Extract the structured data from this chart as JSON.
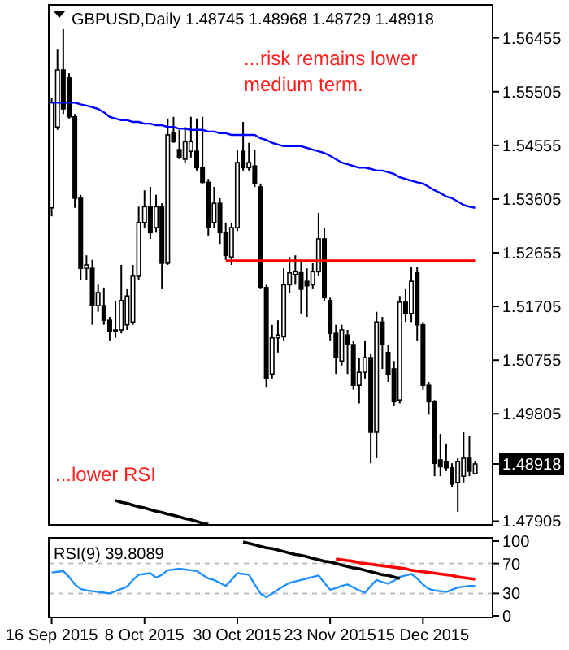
{
  "chart_data": [
    {
      "type": "candlestick",
      "title": "GBPUSD,Daily  1.48745 1.48968 1.48729 1.48918",
      "tick_labels": "y",
      "categories": [
        null,
        null,
        null,
        null,
        null,
        null,
        null,
        null,
        null,
        null,
        null,
        null,
        null,
        null,
        null,
        null,
        null,
        null,
        null,
        null,
        null,
        null,
        null,
        null,
        null,
        null,
        null,
        null,
        null,
        null,
        null,
        null,
        null,
        null,
        null,
        null,
        null,
        null,
        null,
        null,
        null,
        null,
        null,
        null,
        null,
        null,
        null,
        null,
        null,
        null,
        null,
        null,
        null,
        null,
        null,
        null,
        null,
        null,
        null,
        null,
        null,
        null,
        null,
        null,
        null,
        null,
        null,
        null,
        null,
        null,
        null,
        null,
        null,
        null
      ],
      "ohlc": [
        [
          1.5345,
          1.554,
          1.533,
          1.5531
        ],
        [
          1.5488,
          1.5626,
          1.5483,
          1.5589
        ],
        [
          1.5589,
          1.5661,
          1.5511,
          1.552
        ],
        [
          1.5575,
          1.5583,
          1.5503,
          1.5506
        ],
        [
          1.5506,
          1.5511,
          1.5345,
          1.5362
        ],
        [
          1.5362,
          1.5368,
          1.5218,
          1.5238
        ],
        [
          1.5238,
          1.5261,
          1.5218,
          1.5244
        ],
        [
          1.5238,
          1.5253,
          1.5138,
          1.5172
        ],
        [
          1.5172,
          1.5209,
          1.5161,
          1.5195
        ],
        [
          1.5172,
          1.5204,
          1.5138,
          1.5146
        ],
        [
          1.5146,
          1.5152,
          1.5109,
          1.5126
        ],
        [
          1.5129,
          1.5181,
          1.5115,
          1.5126
        ],
        [
          1.5129,
          1.5244,
          1.5123,
          1.5181
        ],
        [
          1.5138,
          1.5201,
          1.5129,
          1.5189
        ],
        [
          1.5143,
          1.5244,
          1.5138,
          1.5224
        ],
        [
          1.5224,
          1.5347,
          1.5218,
          1.5319
        ],
        [
          1.5319,
          1.5376,
          1.531,
          1.5347
        ],
        [
          1.5347,
          1.5382,
          1.529,
          1.5301
        ],
        [
          1.531,
          1.5368,
          1.5301,
          1.5347
        ],
        [
          1.5347,
          1.5353,
          1.5201,
          1.5247
        ],
        [
          1.5247,
          1.5503,
          1.5244,
          1.5474
        ],
        [
          1.5477,
          1.5506,
          1.546,
          1.5462
        ],
        [
          1.5448,
          1.5483,
          1.5431,
          1.5434
        ],
        [
          1.5431,
          1.5488,
          1.5425,
          1.5462
        ],
        [
          1.5445,
          1.5506,
          1.5434,
          1.5462
        ],
        [
          1.5445,
          1.5503,
          1.5411,
          1.5416
        ],
        [
          1.5416,
          1.5506,
          1.5388,
          1.539
        ],
        [
          1.539,
          1.5396,
          1.5296,
          1.531
        ],
        [
          1.5319,
          1.5382,
          1.531,
          1.5353
        ],
        [
          1.5353,
          1.5362,
          1.5281,
          1.5301
        ],
        [
          1.5301,
          1.5319,
          1.5253,
          1.5261
        ],
        [
          1.5258,
          1.5319,
          1.5244,
          1.531
        ],
        [
          1.531,
          1.5448,
          1.5304,
          1.5425
        ],
        [
          1.5445,
          1.5497,
          1.5411,
          1.5416
        ],
        [
          1.5416,
          1.546,
          1.5411,
          1.5425
        ],
        [
          1.5419,
          1.5448,
          1.5382,
          1.5388
        ],
        [
          1.5382,
          1.5388,
          1.5201,
          1.5204
        ],
        [
          1.5204,
          1.5209,
          1.5028,
          1.5043
        ],
        [
          1.5051,
          1.5138,
          1.5043,
          1.5115
        ],
        [
          1.5115,
          1.5146,
          1.5089,
          1.512
        ],
        [
          1.5117,
          1.5238,
          1.5109,
          1.5209
        ],
        [
          1.5209,
          1.5258,
          1.5195,
          1.523
        ],
        [
          1.5227,
          1.5261,
          1.5209,
          1.5232
        ],
        [
          1.523,
          1.5253,
          1.5158,
          1.5201
        ],
        [
          1.5215,
          1.5238,
          1.5152,
          1.5207
        ],
        [
          1.5209,
          1.5247,
          1.5201,
          1.5232
        ],
        [
          1.5232,
          1.5336,
          1.5224,
          1.529
        ],
        [
          1.529,
          1.531,
          1.5181,
          1.5186
        ],
        [
          1.5181,
          1.5186,
          1.5109,
          1.5123
        ],
        [
          1.5123,
          1.5138,
          1.5051,
          1.508
        ],
        [
          1.5074,
          1.5138,
          1.5066,
          1.5129
        ],
        [
          1.512,
          1.5129,
          1.5051,
          1.5103
        ],
        [
          1.5103,
          1.5109,
          1.5023,
          1.5031
        ],
        [
          1.5031,
          1.508,
          1.4999,
          1.5054
        ],
        [
          1.5054,
          1.5109,
          1.5043,
          1.508
        ],
        [
          1.508,
          1.5086,
          1.4893,
          1.4948
        ],
        [
          1.4948,
          1.5161,
          1.4902,
          1.5143
        ],
        [
          1.5143,
          1.5152,
          1.506,
          1.5103
        ],
        [
          1.5089,
          1.5103,
          1.5037,
          1.5051
        ],
        [
          1.506,
          1.5074,
          1.4994,
          1.5002
        ],
        [
          1.5005,
          1.5189,
          1.4999,
          1.5178
        ],
        [
          1.5178,
          1.5201,
          1.5143,
          1.5158
        ],
        [
          1.5158,
          1.5241,
          1.5143,
          1.5215
        ],
        [
          1.523,
          1.5241,
          1.5109,
          1.5138
        ],
        [
          1.5138,
          1.5143,
          1.5023,
          1.5031
        ],
        [
          1.5031,
          1.5037,
          1.4979,
          1.5002
        ],
        [
          1.5002,
          1.5005,
          1.487,
          1.4893
        ],
        [
          1.4899,
          1.4945,
          1.487,
          1.4887
        ],
        [
          1.4896,
          1.4928,
          1.4879,
          1.4885
        ],
        [
          1.4885,
          1.4893,
          1.485,
          1.4856
        ],
        [
          1.4859,
          1.4902,
          1.4807,
          1.4896
        ],
        [
          1.487,
          1.4948,
          1.4859,
          1.4902
        ],
        [
          1.4902,
          1.4942,
          1.487,
          1.4879
        ],
        [
          1.48745,
          1.48968,
          1.48729,
          1.48918
        ]
      ],
      "series": [
        {
          "type": "line",
          "color": "#0000ff",
          "values": [
            1.5531,
            1.5531,
            1.5531,
            1.5531,
            1.5531,
            1.5528,
            1.5526,
            1.5523,
            1.552,
            1.5514,
            1.5506,
            1.5503,
            1.55,
            1.55,
            1.5497,
            1.5497,
            1.5494,
            1.5494,
            1.5491,
            1.5491,
            1.5488,
            1.5488,
            1.5485,
            1.5485,
            1.5483,
            1.5483,
            1.5483,
            1.548,
            1.548,
            1.5477,
            1.5477,
            1.5474,
            1.5474,
            1.5474,
            1.5474,
            1.5474,
            1.5468,
            1.5465,
            1.546,
            1.5457,
            1.5454,
            1.5454,
            1.5454,
            1.5454,
            1.5451,
            1.5448,
            1.5445,
            1.5442,
            1.5437,
            1.5431,
            1.5425,
            1.5422,
            1.5419,
            1.5416,
            1.5416,
            1.5414,
            1.5411,
            1.5411,
            1.5408,
            1.5405,
            1.5399,
            1.5396,
            1.5393,
            1.539,
            1.5388,
            1.5382,
            1.5376,
            1.5371,
            1.5365,
            1.5362,
            1.5356,
            1.535,
            1.5347,
            1.5345
          ]
        },
        {
          "type": "line",
          "color": "#ff0000",
          "values": [
            null,
            null,
            null,
            null,
            null,
            null,
            null,
            null,
            null,
            null,
            null,
            null,
            null,
            null,
            null,
            null,
            null,
            null,
            null,
            null,
            null,
            null,
            null,
            null,
            null,
            null,
            null,
            null,
            null,
            null,
            1.5251,
            1.5251,
            1.5251,
            1.5251,
            1.5251,
            1.5251,
            1.5251,
            1.5251,
            1.5251,
            1.5251,
            1.5251,
            1.5251,
            1.5251,
            1.5251,
            1.5251,
            1.5251,
            1.5251,
            1.5251,
            1.5251,
            1.5251,
            1.5251,
            1.5251,
            1.5251,
            1.5251,
            1.5251,
            1.5251,
            1.5251,
            1.5251,
            1.5251,
            1.5251,
            1.5251,
            1.5251,
            1.5251,
            1.5251,
            1.5251,
            1.5251,
            1.5251,
            1.5251,
            1.5251,
            1.5251,
            1.5251,
            1.5251,
            1.5251,
            1.5251
          ]
        },
        {
          "type": "line",
          "color": "#000000",
          "values": [
            null,
            null,
            null,
            null,
            null,
            null,
            null,
            null,
            null,
            null,
            null,
            1.4827,
            1.4824,
            1.4822,
            1.4819,
            1.4816,
            1.4814,
            1.4811,
            1.4808,
            1.4806,
            1.4803,
            1.4801,
            1.4798,
            1.4795,
            1.4793,
            1.479,
            1.4787,
            1.4785,
            null,
            null,
            null,
            null,
            null,
            null,
            null,
            null,
            null,
            null,
            null,
            null,
            null,
            null,
            null,
            null,
            null,
            null,
            null,
            null,
            null,
            null,
            null,
            null,
            null,
            null,
            null,
            null,
            null,
            null,
            null,
            null,
            null,
            null,
            null,
            null,
            null,
            null,
            null,
            null,
            null,
            null,
            null,
            null,
            null,
            null
          ]
        }
      ],
      "ylim": [
        1.4784,
        1.5704
      ],
      "yticks": [
        1.56455,
        1.55505,
        1.54555,
        1.53605,
        1.52655,
        1.51705,
        1.50755,
        1.49805,
        1.48918,
        1.47905
      ],
      "annotations": [
        "...risk remains lower\nmedium term.",
        "...lower RSI"
      ]
    },
    {
      "type": "line",
      "title": "RSI(9) 39.8089",
      "categories": [
        "16 Sep 2015",
        null,
        null,
        null,
        null,
        null,
        null,
        null,
        null,
        null,
        null,
        null,
        null,
        null,
        null,
        null,
        "8 Oct 2015",
        null,
        null,
        null,
        null,
        null,
        null,
        null,
        null,
        null,
        null,
        null,
        null,
        null,
        null,
        null,
        "30 Oct 2015",
        null,
        null,
        null,
        null,
        null,
        null,
        null,
        null,
        null,
        null,
        null,
        null,
        null,
        null,
        null,
        "23 Nov 2015",
        null,
        null,
        null,
        null,
        null,
        null,
        null,
        null,
        null,
        null,
        null,
        null,
        null,
        null,
        null,
        "15 Dec 2015",
        null,
        null,
        null,
        null,
        null,
        null,
        null,
        null,
        null
      ],
      "series": [
        {
          "color": "#1e90ff",
          "values": [
            58,
            59,
            60,
            52,
            42,
            36,
            34,
            33,
            32,
            31,
            30,
            33,
            36,
            39,
            48,
            55,
            56,
            57,
            51,
            55,
            61,
            62,
            63,
            62,
            61,
            60,
            55,
            50,
            48,
            44,
            40,
            48,
            57,
            56,
            55,
            42,
            30,
            25,
            30,
            35,
            40,
            44,
            46,
            48,
            50,
            52,
            54,
            44,
            35,
            37,
            40,
            42,
            38,
            34,
            31,
            40,
            48,
            45,
            43,
            47,
            52,
            54,
            56,
            50,
            42,
            36,
            34,
            33,
            32,
            35,
            38,
            39,
            40,
            40
          ]
        },
        {
          "color": "#000000",
          "values": [
            null,
            null,
            null,
            null,
            null,
            null,
            null,
            null,
            null,
            null,
            null,
            null,
            null,
            null,
            null,
            null,
            null,
            null,
            null,
            null,
            null,
            null,
            null,
            null,
            null,
            null,
            null,
            null,
            null,
            null,
            null,
            null,
            null,
            99,
            97,
            95,
            93,
            91,
            90,
            88,
            86,
            84,
            82,
            81,
            79,
            77,
            75,
            73,
            72,
            70,
            68,
            66,
            64,
            63,
            61,
            59,
            57,
            55,
            54,
            52,
            50,
            null,
            null,
            null,
            null,
            null,
            null,
            null,
            null,
            null,
            null,
            null,
            null,
            null
          ]
        },
        {
          "color": "#ff0000",
          "values": [
            null,
            null,
            null,
            null,
            null,
            null,
            null,
            null,
            null,
            null,
            null,
            null,
            null,
            null,
            null,
            null,
            null,
            null,
            null,
            null,
            null,
            null,
            null,
            null,
            null,
            null,
            null,
            null,
            null,
            null,
            null,
            null,
            null,
            null,
            null,
            null,
            null,
            null,
            null,
            null,
            null,
            null,
            null,
            null,
            null,
            null,
            null,
            null,
            null,
            76,
            75,
            74,
            73,
            71,
            70,
            69,
            68,
            67,
            66,
            65,
            64,
            63,
            61,
            60,
            59,
            58,
            57,
            56,
            55,
            54,
            52,
            51,
            50,
            49
          ]
        }
      ],
      "ylim": [
        0,
        100
      ],
      "yticks": [
        100,
        70,
        30,
        0
      ],
      "ref_lines": [
        {
          "axis": "y",
          "value": 70,
          "color": "#c0c0c0",
          "line_style": "dashed"
        },
        {
          "axis": "y",
          "value": 30,
          "color": "#c0c0c0",
          "line_style": "dashed"
        }
      ]
    }
  ]
}
